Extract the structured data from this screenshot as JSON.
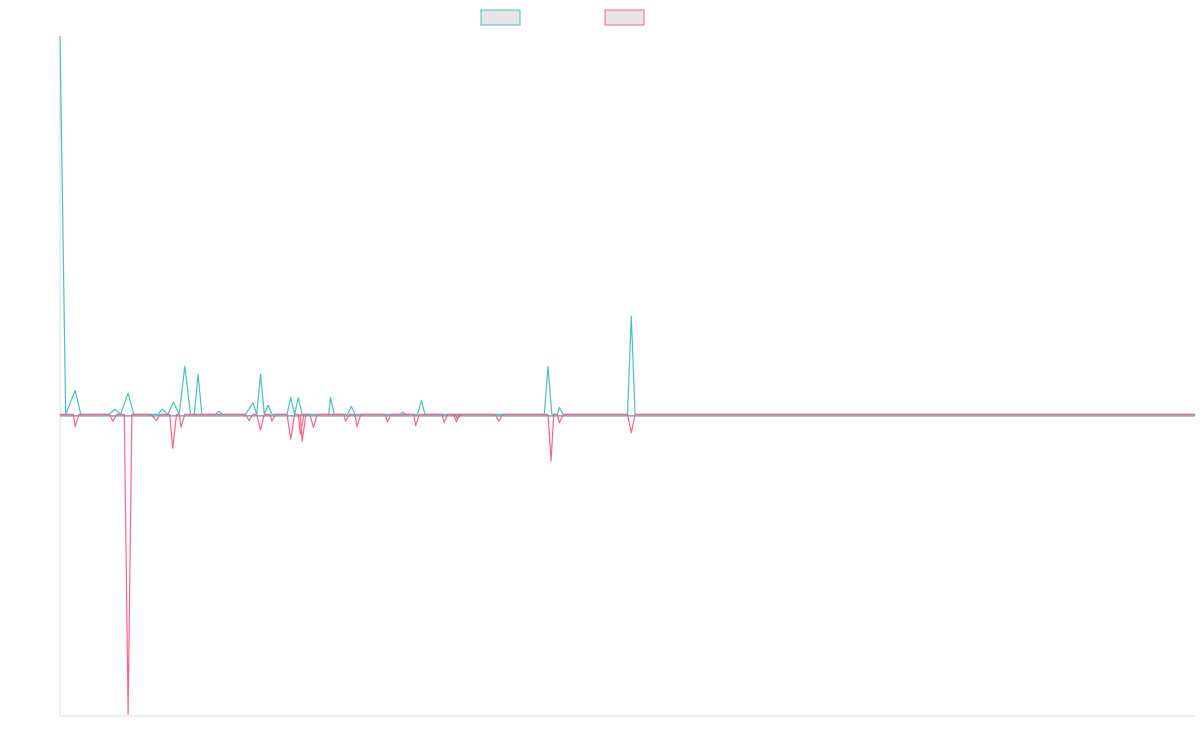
{
  "chart_data": {
    "type": "line",
    "title": "",
    "xlabel": "",
    "ylabel": "",
    "grid": false,
    "legend_position": "top-center",
    "colors": {
      "series_a": "#4bc0c0",
      "series_b": "#ff6384",
      "axis": "#dddddd",
      "zero_line": "#6a8fb5"
    },
    "series": [
      {
        "legend_label": "",
        "color": "#4bc0c0",
        "points": [
          [
            0,
            1.0
          ],
          [
            1.5,
            0.004
          ],
          [
            4,
            0.067
          ],
          [
            5.5,
            0.004
          ],
          [
            7,
            0.004
          ],
          [
            9,
            0.004
          ],
          [
            11,
            0.004
          ],
          [
            13,
            0.004
          ],
          [
            14.5,
            0.018
          ],
          [
            16,
            0.004
          ],
          [
            18,
            0.06
          ],
          [
            19.5,
            0.004
          ],
          [
            26,
            0.004
          ],
          [
            27,
            0.018
          ],
          [
            28.5,
            0.004
          ],
          [
            30,
            0.036
          ],
          [
            31.5,
            0.004
          ],
          [
            33,
            0.131
          ],
          [
            34.5,
            0.004
          ],
          [
            35.5,
            0.004
          ],
          [
            36.5,
            0.109
          ],
          [
            37.5,
            0.004
          ],
          [
            41,
            0.004
          ],
          [
            42,
            0.012
          ],
          [
            43,
            0.004
          ],
          [
            49,
            0.004
          ],
          [
            51,
            0.034
          ],
          [
            52,
            0.004
          ],
          [
            53,
            0.109
          ],
          [
            54,
            0.004
          ],
          [
            55,
            0.028
          ],
          [
            56,
            0.004
          ],
          [
            58,
            0.004
          ],
          [
            60,
            0.004
          ],
          [
            61,
            0.048
          ],
          [
            62,
            0.004
          ],
          [
            63,
            0.048
          ],
          [
            64,
            0.004
          ],
          [
            71,
            0.004
          ],
          [
            71.5,
            0.048
          ],
          [
            72.5,
            0.004
          ],
          [
            76,
            0.004
          ],
          [
            77,
            0.025
          ],
          [
            78,
            0.004
          ],
          [
            90,
            0.004
          ],
          [
            90.5,
            0.01
          ],
          [
            91.5,
            0.004
          ],
          [
            94.5,
            0.004
          ],
          [
            95.5,
            0.04
          ],
          [
            96.5,
            0.004
          ],
          [
            128,
            0.004
          ],
          [
            129,
            0.13
          ],
          [
            130,
            0.004
          ],
          [
            131.5,
            0.004
          ],
          [
            132,
            0.022
          ],
          [
            133,
            0.004
          ],
          [
            150,
            0.004
          ],
          [
            151,
            0.262
          ],
          [
            152,
            0.004
          ],
          [
            300,
            0.004
          ]
        ]
      },
      {
        "legend_label": "",
        "color": "#ff6384",
        "points": [
          [
            0,
            0.004
          ],
          [
            3.5,
            0.004
          ],
          [
            4,
            -0.028
          ],
          [
            5,
            0.004
          ],
          [
            13,
            0.004
          ],
          [
            14,
            -0.014
          ],
          [
            15,
            0.004
          ],
          [
            17,
            0.004
          ],
          [
            18,
            -0.786
          ],
          [
            19,
            0.004
          ],
          [
            24,
            0.004
          ],
          [
            25.5,
            -0.012
          ],
          [
            26.5,
            0.004
          ],
          [
            29,
            0.004
          ],
          [
            29.8,
            -0.085
          ],
          [
            30.8,
            0.004
          ],
          [
            31.5,
            0.004
          ],
          [
            32,
            -0.03
          ],
          [
            33,
            0.004
          ],
          [
            49,
            0.004
          ],
          [
            50,
            -0.012
          ],
          [
            51,
            0.004
          ],
          [
            52,
            0.004
          ],
          [
            53,
            -0.037
          ],
          [
            54,
            0.004
          ],
          [
            55.5,
            0.004
          ],
          [
            56,
            -0.014
          ],
          [
            57,
            0.004
          ],
          [
            60,
            0.004
          ],
          [
            61,
            -0.061
          ],
          [
            62,
            0.004
          ],
          [
            63,
            0.004
          ],
          [
            63.5,
            -0.048
          ],
          [
            64.5,
            0.004
          ],
          [
            63.5,
            0.004
          ],
          [
            64,
            -0.067
          ],
          [
            65,
            0.004
          ],
          [
            66,
            0.004
          ],
          [
            67,
            -0.03
          ],
          [
            68,
            0.004
          ],
          [
            75,
            0.004
          ],
          [
            75.5,
            -0.014
          ],
          [
            76.5,
            0.004
          ],
          [
            78,
            0.004
          ],
          [
            78.5,
            -0.028
          ],
          [
            79.5,
            0.004
          ],
          [
            86,
            0.004
          ],
          [
            86.5,
            -0.016
          ],
          [
            87.5,
            0.004
          ],
          [
            93.5,
            0.004
          ],
          [
            94,
            -0.026
          ],
          [
            95,
            0.004
          ],
          [
            101,
            0.004
          ],
          [
            101.5,
            -0.018
          ],
          [
            102.5,
            0.004
          ],
          [
            104.5,
            0.004
          ],
          [
            105,
            -0.009
          ],
          [
            106,
            0.004
          ],
          [
            104,
            0.004
          ],
          [
            104.8,
            -0.016
          ],
          [
            105.5,
            0.004
          ],
          [
            115,
            0.004
          ],
          [
            116,
            -0.014
          ],
          [
            117,
            0.004
          ],
          [
            129,
            0.004
          ],
          [
            129.8,
            -0.118
          ],
          [
            130.5,
            0.004
          ],
          [
            131.5,
            0.004
          ],
          [
            132,
            -0.018
          ],
          [
            133,
            0.004
          ],
          [
            150,
            0.004
          ],
          [
            151,
            -0.044
          ],
          [
            152,
            0.004
          ],
          [
            300,
            0.004
          ]
        ]
      }
    ],
    "xlim": [
      0,
      300
    ],
    "ylim": [
      -0.79,
      1.0
    ]
  }
}
